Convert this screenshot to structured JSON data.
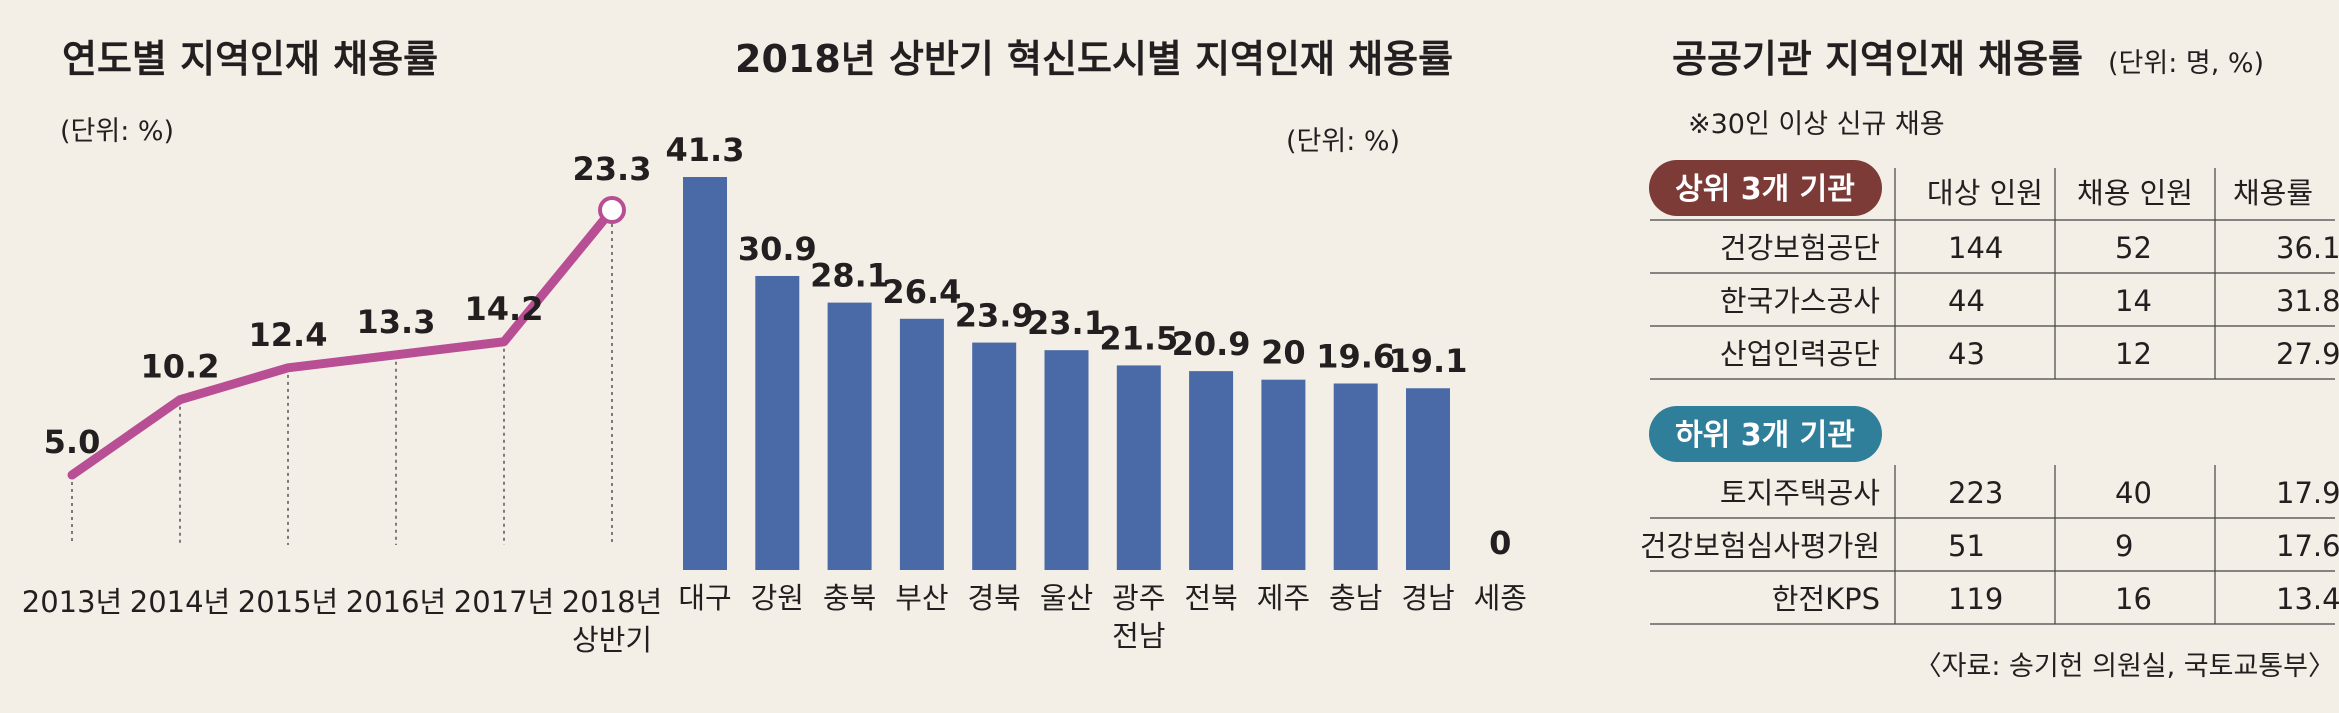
{
  "colors": {
    "background": "#f4efe6",
    "line": "#b84f95",
    "bar": "#4a6aa7",
    "top_badge": "#7c3b37",
    "bottom_badge": "#2f7f9b"
  },
  "chart_data": [
    {
      "type": "line",
      "title": "연도별 지역인재 채용률",
      "unit_label": "(단위: %)",
      "categories": [
        [
          "2013년"
        ],
        [
          "2014년"
        ],
        [
          "2015년"
        ],
        [
          "2016년"
        ],
        [
          "2017년"
        ],
        [
          "2018년",
          "상반기"
        ]
      ],
      "values": [
        5.0,
        10.2,
        12.4,
        13.3,
        14.2,
        23.3
      ],
      "value_labels": [
        "5.0",
        "10.2",
        "12.4",
        "13.3",
        "14.2",
        "23.3"
      ]
    },
    {
      "type": "bar",
      "title": "2018년 상반기 혁신도시별 지역인재 채용률",
      "unit_label": "(단위: %)",
      "categories": [
        [
          "대구"
        ],
        [
          "강원"
        ],
        [
          "충북"
        ],
        [
          "부산"
        ],
        [
          "경북"
        ],
        [
          "울산"
        ],
        [
          "광주",
          "전남"
        ],
        [
          "전북"
        ],
        [
          "제주"
        ],
        [
          "충남"
        ],
        [
          "경남"
        ],
        [
          "세종"
        ]
      ],
      "values": [
        41.3,
        30.9,
        28.1,
        26.4,
        23.9,
        23.1,
        21.5,
        20.9,
        20,
        19.6,
        19.1,
        0
      ],
      "value_labels": [
        "41.3",
        "30.9",
        "28.1",
        "26.4",
        "23.9",
        "23.1",
        "21.5",
        "20.9",
        "20",
        "19.6",
        "19.1",
        "0"
      ]
    },
    {
      "type": "table",
      "title": "공공기관 지역인재 채용률",
      "unit_label": "(단위: 명, %)",
      "note": "※30인 이상 신규 채용",
      "columns": [
        "대상 인원",
        "채용 인원",
        "채용률"
      ],
      "groups": [
        {
          "label": "상위 3개 기관",
          "rows": [
            {
              "name": "건강보험공단",
              "target": "144",
              "hired": "52",
              "rate": "36.1"
            },
            {
              "name": "한국가스공사",
              "target": "44",
              "hired": "14",
              "rate": "31.8"
            },
            {
              "name": "산업인력공단",
              "target": "43",
              "hired": "12",
              "rate": "27.9"
            }
          ]
        },
        {
          "label": "하위 3개 기관",
          "rows": [
            {
              "name": "토지주택공사",
              "target": "223",
              "hired": "40",
              "rate": "17.9"
            },
            {
              "name": "건강보험심사평가원",
              "target": "51",
              "hired": "9",
              "rate": "17.6"
            },
            {
              "name": "한전KPS",
              "target": "119",
              "hired": "16",
              "rate": "13.4"
            }
          ]
        }
      ],
      "source": "〈자료: 송기헌 의원실, 국토교통부〉"
    }
  ]
}
